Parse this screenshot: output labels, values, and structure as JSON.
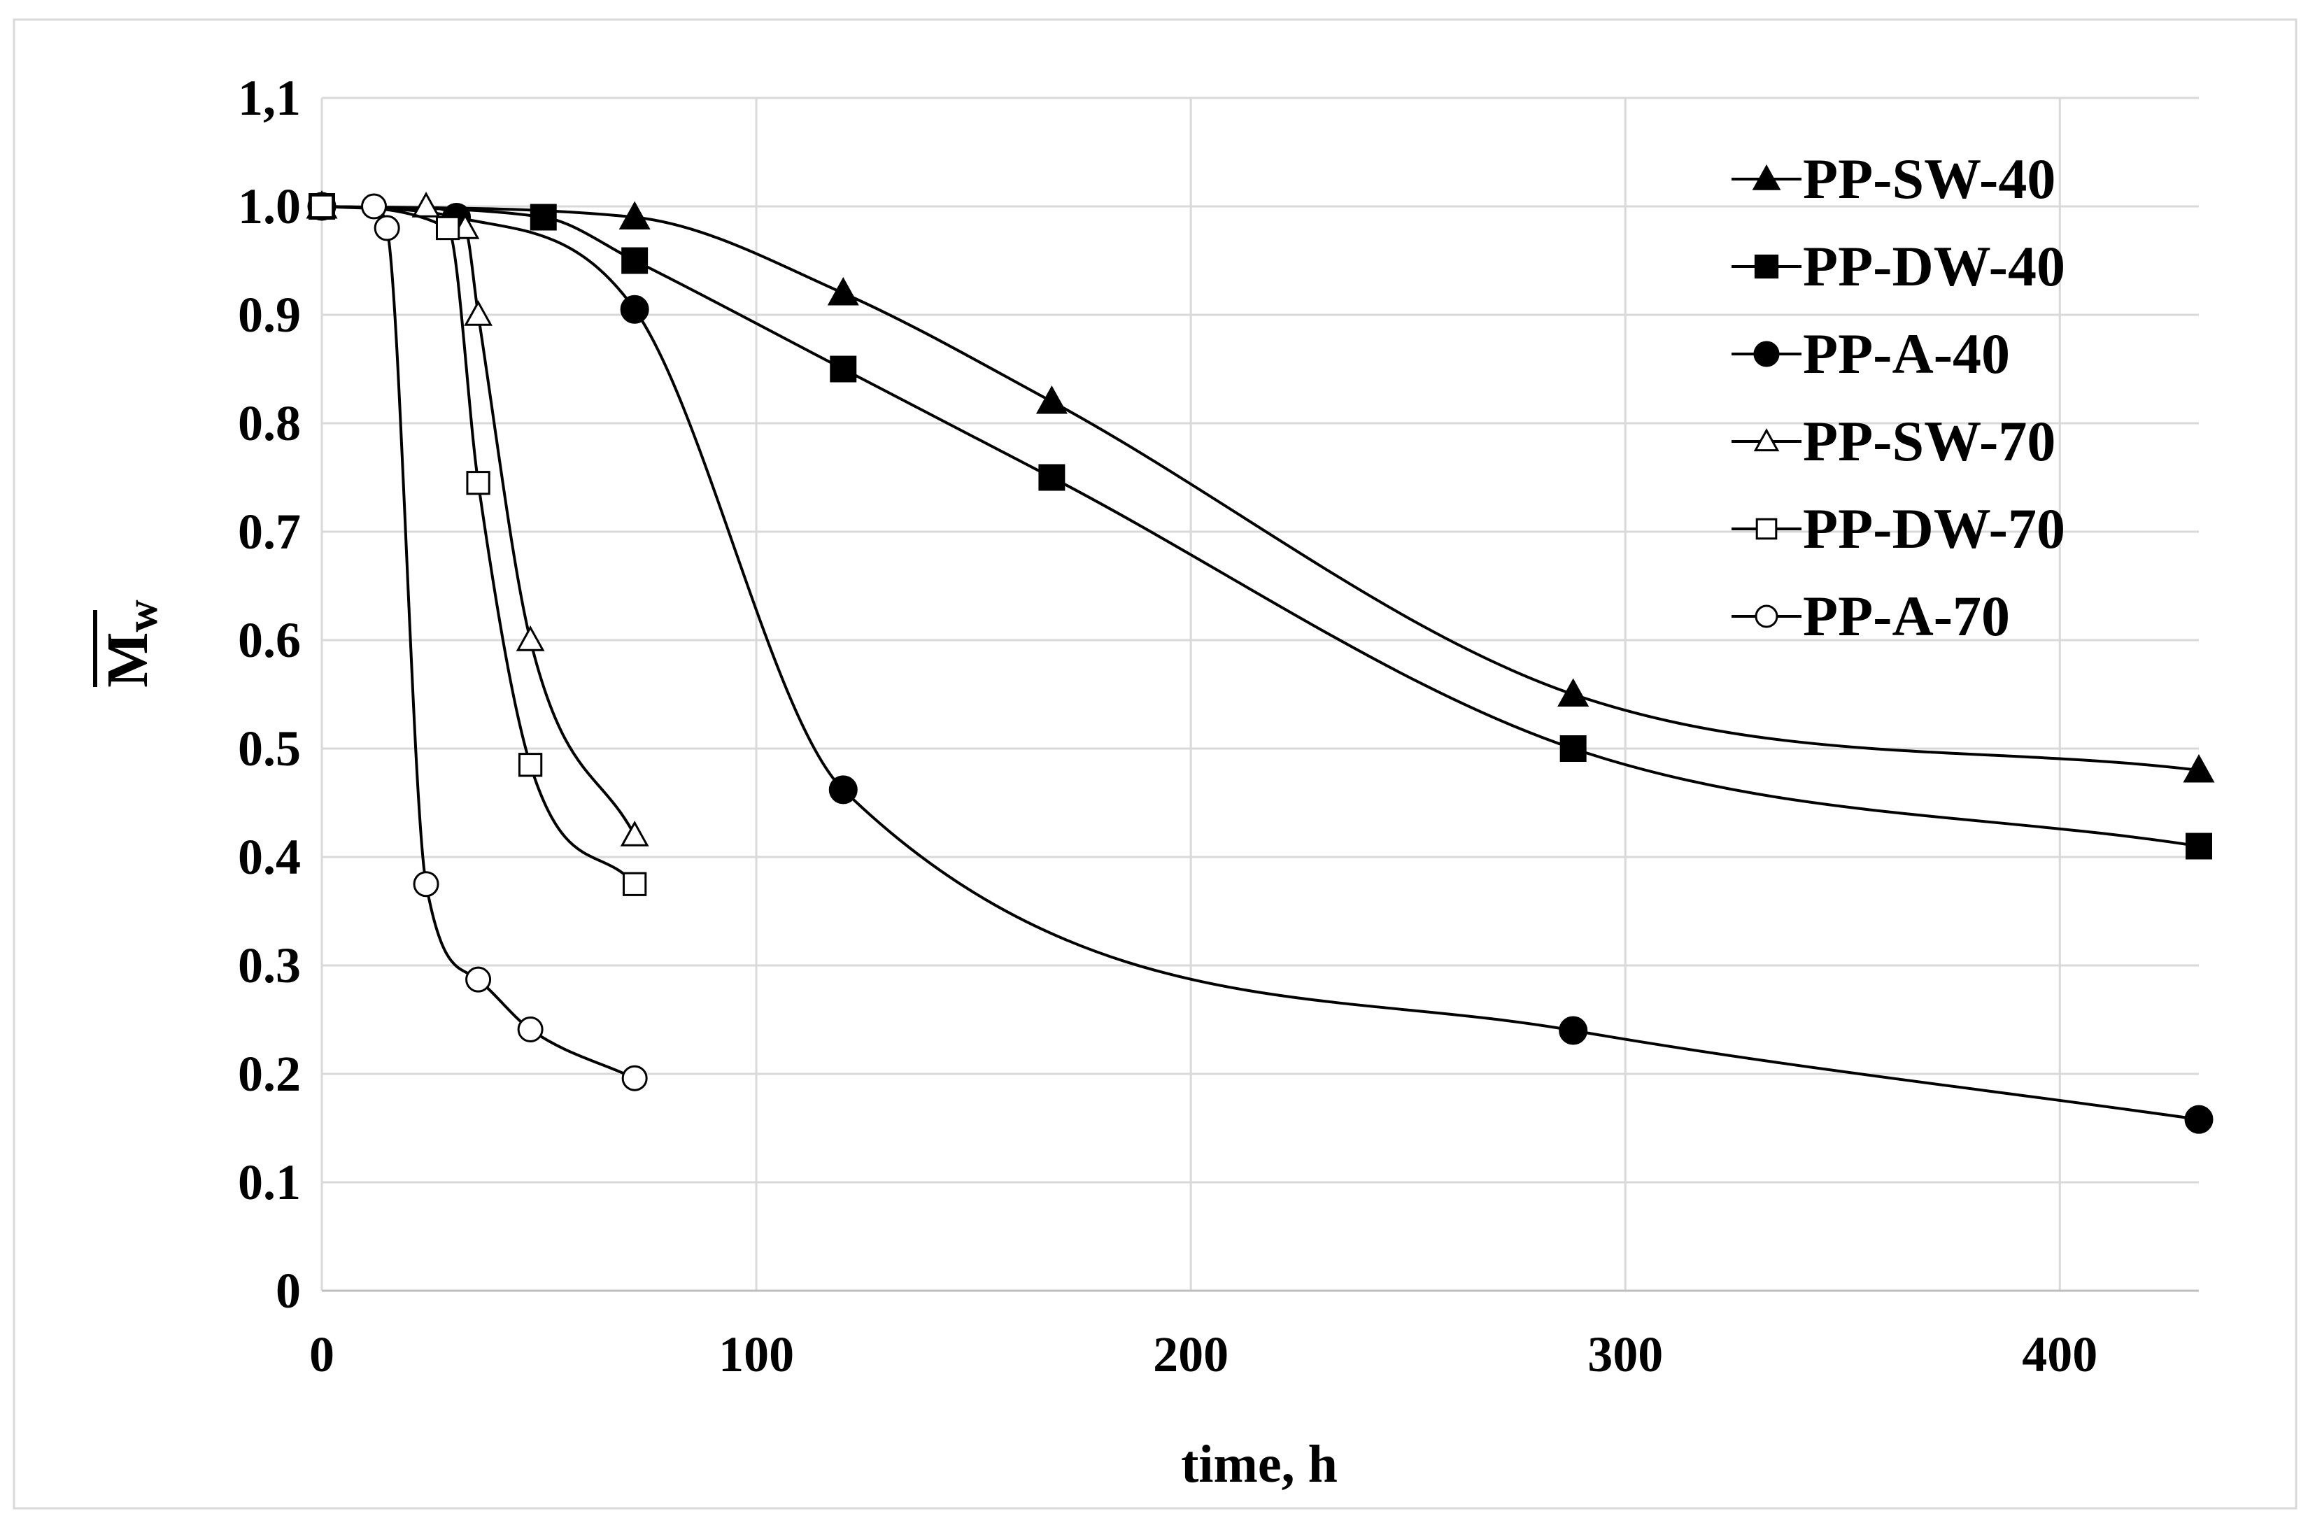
{
  "chart_data": {
    "type": "line",
    "title": "",
    "xlabel": "time, h",
    "ylabel": "M",
    "ylabel_subscript": "w",
    "xlim": [
      0,
      432
    ],
    "ylim": [
      0,
      1.1
    ],
    "x_ticks": [
      0,
      100,
      200,
      300,
      400
    ],
    "x_tick_labels": [
      "0",
      "100",
      "200",
      "300",
      "400"
    ],
    "y_ticks": [
      0,
      0.1,
      0.2,
      0.3,
      0.4,
      0.5,
      0.6,
      0.7,
      0.8,
      0.9,
      1.0,
      1.1
    ],
    "y_tick_labels": [
      "0",
      "0.1",
      "0.2",
      "0.3",
      "0.4",
      "0.5",
      "0.6",
      "0.7",
      "0.8",
      "0.9",
      "1.0",
      "1,1"
    ],
    "grid": true,
    "legend_position": "top-right",
    "series": [
      {
        "name": "PP-SW-40",
        "marker": "triangle",
        "filled": true,
        "x": [
          0,
          72,
          120,
          168,
          288,
          432
        ],
        "y": [
          1.0,
          0.99,
          0.92,
          0.82,
          0.55,
          0.48
        ]
      },
      {
        "name": "PP-DW-40",
        "marker": "square",
        "filled": true,
        "x": [
          0,
          51,
          72,
          120,
          168,
          288,
          432
        ],
        "y": [
          1.0,
          0.99,
          0.95,
          0.85,
          0.75,
          0.5,
          0.41
        ]
      },
      {
        "name": "PP-A-40",
        "marker": "circle",
        "filled": true,
        "x": [
          0,
          31,
          72,
          120,
          288,
          432
        ],
        "y": [
          1.0,
          0.99,
          0.905,
          0.462,
          0.24,
          0.158
        ]
      },
      {
        "name": "PP-SW-70",
        "marker": "triangle",
        "filled": false,
        "x": [
          24,
          33,
          36,
          48,
          72
        ],
        "y": [
          1.0,
          0.98,
          0.9,
          0.6,
          0.42
        ]
      },
      {
        "name": "PP-DW-70",
        "marker": "square",
        "filled": false,
        "x": [
          0,
          29,
          36,
          48,
          72
        ],
        "y": [
          1.0,
          0.98,
          0.745,
          0.485,
          0.375
        ]
      },
      {
        "name": "PP-A-70",
        "marker": "circle",
        "filled": false,
        "x": [
          12,
          15,
          24,
          36,
          48,
          72
        ],
        "y": [
          1.0,
          0.98,
          0.375,
          0.287,
          0.241,
          0.196
        ]
      }
    ]
  }
}
